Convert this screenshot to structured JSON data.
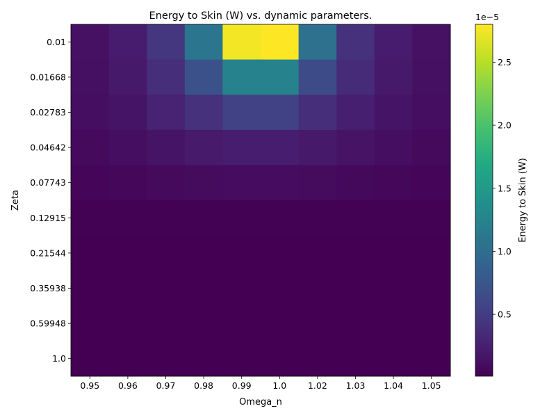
{
  "chart_data": {
    "type": "heatmap",
    "title": "Energy to Skin (W) vs. dynamic parameters.",
    "xlabel": "Omega_n",
    "ylabel": "Zeta",
    "x_categories": [
      "0.95",
      "0.96",
      "0.97",
      "0.98",
      "0.99",
      "1.0",
      "1.02",
      "1.03",
      "1.04",
      "1.05"
    ],
    "y_categories": [
      "0.01",
      "0.01668",
      "0.02783",
      "0.04642",
      "0.07743",
      "0.12915",
      "0.21544",
      "0.35938",
      "0.59948",
      "1.0"
    ],
    "values": [
      [
        1.4e-06,
        2.2e-06,
        4.5e-06,
        1.1e-05,
        2.75e-05,
        2.8e-05,
        1.05e-05,
        4e-06,
        2.2e-06,
        1.4e-06
      ],
      [
        1.3e-06,
        2e-06,
        3.8e-06,
        7e-06,
        1.25e-05,
        1.25e-05,
        6.5e-06,
        3.5e-06,
        2e-06,
        1.3e-06
      ],
      [
        1.1e-06,
        1.6e-06,
        2.7e-06,
        4e-06,
        5.5e-06,
        5.5e-06,
        3.8e-06,
        2.5e-06,
        1.6e-06,
        1.1e-06
      ],
      [
        8e-07,
        1.1e-06,
        1.6e-06,
        2.1e-06,
        2.4e-06,
        2.4e-06,
        2e-06,
        1.5e-06,
        1.1e-06,
        8e-07
      ],
      [
        5e-07,
        6e-07,
        8e-07,
        9.5e-07,
        1e-06,
        1e-06,
        9.5e-07,
        7.5e-07,
        6e-07,
        5e-07
      ],
      [
        1.5e-07,
        1.6e-07,
        1.8e-07,
        1.9e-07,
        2e-07,
        2e-07,
        1.9e-07,
        1.8e-07,
        1.6e-07,
        1.5e-07
      ],
      [
        1e-07,
        1e-07,
        1e-07,
        1e-07,
        1e-07,
        1e-07,
        1e-07,
        1e-07,
        1e-07,
        1e-07
      ],
      [
        1e-07,
        1e-07,
        1e-07,
        1e-07,
        1e-07,
        1e-07,
        1e-07,
        1e-07,
        1e-07,
        1e-07
      ],
      [
        1e-07,
        1e-07,
        1e-07,
        1e-07,
        1e-07,
        1e-07,
        1e-07,
        1e-07,
        1e-07,
        1e-07
      ],
      [
        1e-07,
        1e-07,
        1e-07,
        1e-07,
        1e-07,
        1e-07,
        1e-07,
        1e-07,
        1e-07,
        1e-07
      ]
    ],
    "colormap": "viridis",
    "colorbar": {
      "label": "Energy to Skin (W)",
      "offset_text": "1e−5",
      "vmin": 1e-07,
      "vmax": 2.8e-05,
      "ticks": [
        5e-06,
        1e-05,
        1.5e-05,
        2e-05,
        2.5e-05
      ],
      "tick_labels": [
        "0.5",
        "1.0",
        "1.5",
        "2.0",
        "2.5"
      ]
    }
  }
}
